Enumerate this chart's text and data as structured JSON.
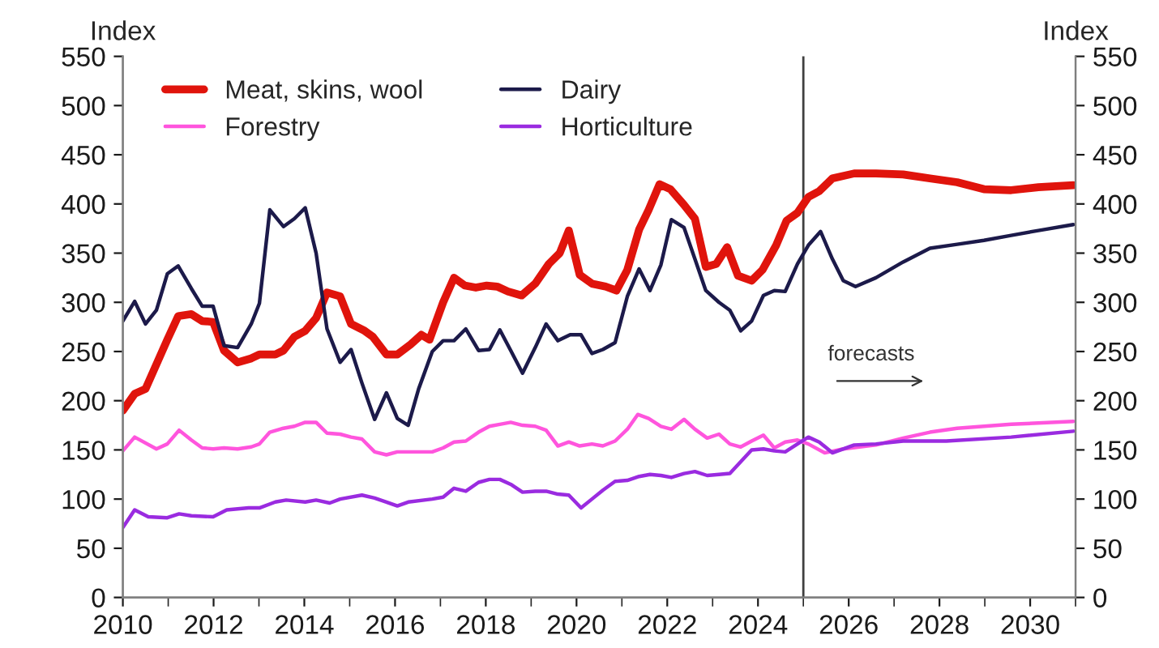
{
  "chart_data": {
    "type": "line",
    "ylabel": "Index",
    "y2label": "Index",
    "xlim": [
      2010,
      2031
    ],
    "xticks": [
      2010,
      2012,
      2014,
      2016,
      2018,
      2020,
      2022,
      2024,
      2026,
      2028,
      2030
    ],
    "ylim": [
      0,
      550
    ],
    "yticks": [
      0,
      50,
      100,
      150,
      200,
      250,
      300,
      350,
      400,
      450,
      500,
      550
    ],
    "y2lim": [
      0,
      550
    ],
    "y2ticks": [
      0,
      50,
      100,
      150,
      200,
      250,
      300,
      350,
      400,
      450,
      500,
      550
    ],
    "grid": false,
    "legend": "top left",
    "line_style": "solid",
    "marker": "none",
    "ref_lines": [
      {
        "axis": "x",
        "value": 2025,
        "color": "#404040"
      }
    ],
    "annotations": [
      "forecasts"
    ],
    "series": [
      {
        "name": "Meat, skins, wool",
        "color": "#e0140c",
        "x": [
          2010.0,
          2010.26,
          2010.5,
          2010.98,
          2011.22,
          2011.51,
          2011.75,
          2011.99,
          2012.23,
          2012.53,
          2012.83,
          2013.01,
          2013.36,
          2013.54,
          2013.78,
          2014.02,
          2014.26,
          2014.5,
          2014.79,
          2015.03,
          2015.33,
          2015.51,
          2015.81,
          2016.05,
          2016.34,
          2016.58,
          2016.76,
          2017.06,
          2017.3,
          2017.54,
          2017.78,
          2018.02,
          2018.25,
          2018.49,
          2018.79,
          2019.09,
          2019.39,
          2019.63,
          2019.83,
          2020.07,
          2020.34,
          2020.64,
          2020.88,
          2021.12,
          2021.38,
          2021.59,
          2021.83,
          2022.07,
          2022.37,
          2022.61,
          2022.85,
          2023.08,
          2023.32,
          2023.56,
          2023.86,
          2024.1,
          2024.4,
          2024.63,
          2024.87,
          2025.11,
          2025.35,
          2025.64,
          2026.12,
          2026.6,
          2027.2,
          2027.79,
          2028.39,
          2028.98,
          2029.58,
          2030.18,
          2030.95
        ],
        "values": [
          190,
          207,
          212,
          262,
          286,
          288,
          281,
          280,
          251,
          239,
          243,
          247,
          247,
          251,
          265,
          271,
          284,
          310,
          306,
          278,
          271,
          265,
          247,
          247,
          257,
          267,
          262,
          300,
          325,
          317,
          315,
          317,
          316,
          311,
          307,
          319,
          339,
          350,
          373,
          328,
          319,
          316,
          312,
          333,
          374,
          394,
          420,
          415,
          399,
          385,
          336,
          339,
          356,
          327,
          322,
          333,
          358,
          383,
          391,
          407,
          413,
          426,
          431,
          431,
          430,
          426,
          422,
          415,
          414,
          417,
          419
        ]
      },
      {
        "name": "Dairy",
        "color": "#1c1a4a",
        "x": [
          2010.0,
          2010.26,
          2010.5,
          2010.74,
          2010.98,
          2011.22,
          2011.51,
          2011.75,
          2011.99,
          2012.23,
          2012.53,
          2012.83,
          2013.01,
          2013.24,
          2013.54,
          2013.78,
          2014.02,
          2014.26,
          2014.5,
          2014.79,
          2015.03,
          2015.27,
          2015.55,
          2015.81,
          2016.05,
          2016.29,
          2016.52,
          2016.82,
          2017.06,
          2017.3,
          2017.56,
          2017.84,
          2018.08,
          2018.31,
          2018.55,
          2018.81,
          2019.09,
          2019.33,
          2019.59,
          2019.86,
          2020.1,
          2020.34,
          2020.58,
          2020.85,
          2021.12,
          2021.38,
          2021.62,
          2021.86,
          2022.09,
          2022.37,
          2022.61,
          2022.85,
          2023.14,
          2023.38,
          2023.62,
          2023.86,
          2024.12,
          2024.36,
          2024.6,
          2024.87,
          2025.11,
          2025.38,
          2025.64,
          2025.88,
          2026.15,
          2026.6,
          2027.2,
          2027.79,
          2028.39,
          2028.98,
          2029.58,
          2030.18,
          2030.95
        ],
        "values": [
          281,
          301,
          278,
          292,
          329,
          337,
          314,
          296,
          296,
          256,
          254,
          278,
          299,
          394,
          377,
          385,
          396,
          350,
          273,
          239,
          252,
          218,
          181,
          208,
          182,
          175,
          212,
          250,
          261,
          261,
          273,
          251,
          252,
          272,
          251,
          228,
          254,
          278,
          261,
          267,
          267,
          248,
          252,
          259,
          306,
          334,
          312,
          338,
          384,
          376,
          344,
          312,
          300,
          292,
          271,
          281,
          307,
          312,
          311,
          339,
          358,
          372,
          344,
          322,
          316,
          325,
          341,
          355,
          359,
          363,
          368,
          373,
          379
        ]
      },
      {
        "name": "Forestry",
        "color": "#ff55dd",
        "x": [
          2010.0,
          2010.26,
          2010.74,
          2010.98,
          2011.24,
          2011.51,
          2011.75,
          2011.99,
          2012.23,
          2012.53,
          2012.83,
          2013.01,
          2013.24,
          2013.54,
          2013.78,
          2014.02,
          2014.26,
          2014.5,
          2014.79,
          2015.03,
          2015.27,
          2015.55,
          2015.81,
          2016.05,
          2016.29,
          2016.52,
          2016.82,
          2017.06,
          2017.3,
          2017.56,
          2017.84,
          2018.08,
          2018.31,
          2018.55,
          2018.81,
          2019.09,
          2019.33,
          2019.59,
          2019.83,
          2020.07,
          2020.34,
          2020.58,
          2020.85,
          2021.12,
          2021.35,
          2021.59,
          2021.86,
          2022.09,
          2022.37,
          2022.61,
          2022.88,
          2023.14,
          2023.38,
          2023.62,
          2023.86,
          2024.12,
          2024.36,
          2024.6,
          2024.87,
          2025.11,
          2025.47,
          2025.88,
          2026.6,
          2027.2,
          2027.79,
          2028.39,
          2029.58,
          2030.95
        ],
        "values": [
          149,
          163,
          151,
          156,
          170,
          160,
          152,
          151,
          152,
          151,
          153,
          156,
          168,
          172,
          174,
          178,
          178,
          167,
          166,
          163,
          161,
          148,
          145,
          148,
          148,
          148,
          148,
          152,
          158,
          159,
          168,
          174,
          176,
          178,
          175,
          174,
          170,
          154,
          158,
          154,
          156,
          154,
          159,
          171,
          186,
          182,
          174,
          171,
          181,
          171,
          162,
          166,
          156,
          153,
          159,
          165,
          152,
          158,
          160,
          156,
          147,
          151,
          155,
          162,
          168,
          172,
          176,
          179
        ]
      },
      {
        "name": "Horticulture",
        "color": "#9a2be0",
        "x": [
          2010.0,
          2010.26,
          2010.56,
          2010.98,
          2011.24,
          2011.51,
          2011.99,
          2012.29,
          2012.77,
          2013.01,
          2013.36,
          2013.6,
          2014.02,
          2014.26,
          2014.56,
          2014.79,
          2015.27,
          2015.55,
          2015.81,
          2016.05,
          2016.29,
          2016.82,
          2017.06,
          2017.3,
          2017.56,
          2017.84,
          2018.08,
          2018.31,
          2018.55,
          2018.81,
          2019.09,
          2019.33,
          2019.59,
          2019.83,
          2020.1,
          2020.34,
          2020.58,
          2020.85,
          2021.12,
          2021.38,
          2021.62,
          2021.86,
          2022.09,
          2022.37,
          2022.61,
          2022.88,
          2023.14,
          2023.38,
          2023.62,
          2023.86,
          2024.12,
          2024.36,
          2024.6,
          2024.87,
          2025.11,
          2025.35,
          2025.64,
          2026.12,
          2026.6,
          2027.2,
          2028.15,
          2029.58,
          2030.95
        ],
        "values": [
          71,
          89,
          82,
          81,
          85,
          83,
          82,
          89,
          91,
          91,
          97,
          99,
          97,
          99,
          96,
          100,
          104,
          101,
          97,
          93,
          97,
          100,
          102,
          111,
          108,
          117,
          120,
          120,
          115,
          107,
          108,
          108,
          105,
          104,
          91,
          100,
          109,
          118,
          119,
          123,
          125,
          124,
          122,
          126,
          128,
          124,
          125,
          126,
          138,
          150,
          151,
          149,
          148,
          156,
          163,
          158,
          147,
          155,
          156,
          159,
          159,
          163,
          169
        ]
      }
    ]
  }
}
